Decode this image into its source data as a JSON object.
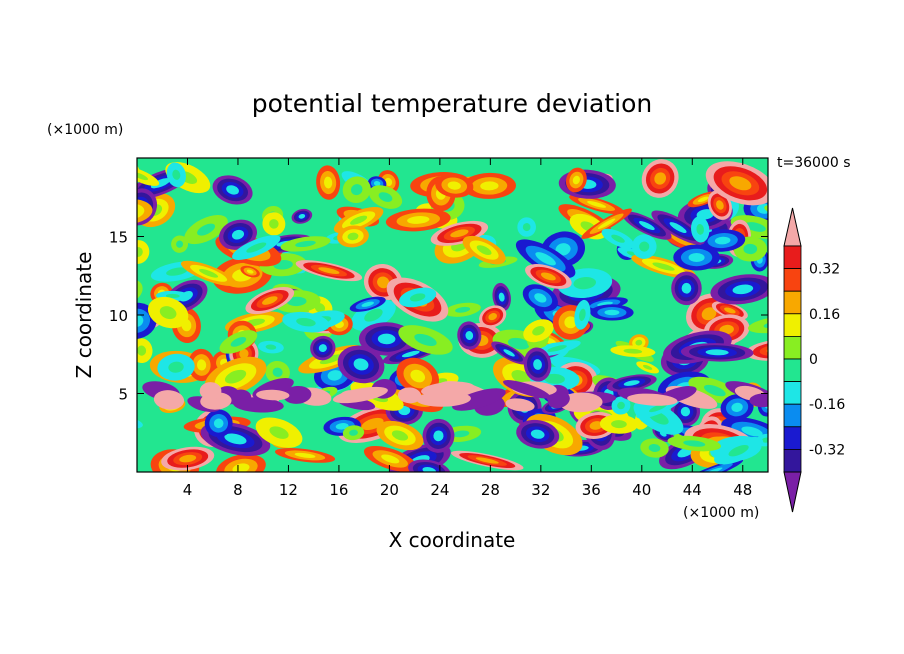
{
  "chart_data": {
    "type": "heatmap",
    "title": "potential temperature deviation",
    "xlabel": "X coordinate",
    "ylabel": "Z coordinate",
    "x_unit": "(×1000 m)",
    "y_unit": "(×1000 m)",
    "time_label": "t=36000 s",
    "xlim": [
      0,
      50
    ],
    "ylim": [
      0,
      20
    ],
    "x_ticks": [
      4,
      8,
      12,
      16,
      20,
      24,
      28,
      32,
      36,
      40,
      44,
      48
    ],
    "y_ticks": [
      5,
      10,
      15
    ],
    "colorbar": {
      "levels": [
        -0.4,
        -0.32,
        -0.24,
        -0.16,
        -0.08,
        0,
        0.08,
        0.16,
        0.24,
        0.32,
        0.4
      ],
      "labels": [
        "0.32",
        "0.16",
        "0",
        "-0.16",
        "-0.32"
      ],
      "label_values": [
        0.32,
        0.16,
        0,
        -0.16,
        -0.32
      ],
      "colors": [
        "#7a1fa6",
        "#33169c",
        "#1a1ad0",
        "#0a8cf0",
        "#1ee6e6",
        "#22e690",
        "#88ee22",
        "#f0f000",
        "#f8a800",
        "#f84410",
        "#e81c1c",
        "#f4a8a8"
      ],
      "extend": "both"
    },
    "grid": false
  }
}
